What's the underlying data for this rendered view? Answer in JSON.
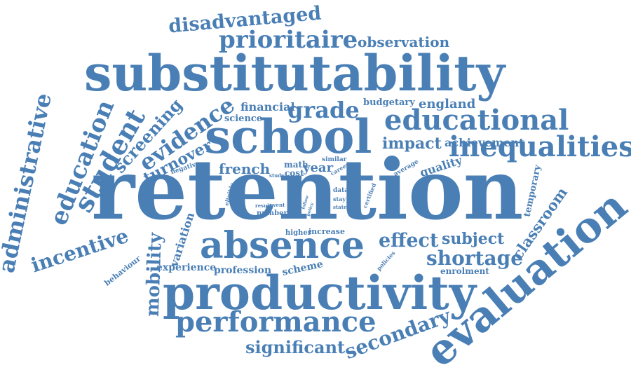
{
  "word_cloud": {
    "color": "#4a7fb5",
    "words": [
      "retention",
      "substitutability",
      "school",
      "productivity",
      "absence",
      "evaluation",
      "educational",
      "inequalities",
      "performance",
      "prioritaire",
      "disadvantaged",
      "student",
      "education",
      "administrative",
      "evidence",
      "grade",
      "incentive",
      "shortage",
      "effect",
      "mobility",
      "secondary",
      "significant",
      "screening",
      "impact",
      "subject",
      "turnover",
      "french",
      "classroom",
      "observation",
      "england",
      "financial",
      "achievement",
      "science",
      "year",
      "quality",
      "experience",
      "variation",
      "profession",
      "temporary",
      "budgetary",
      "scheme",
      "enrolment",
      "behaviour",
      "negative",
      "math",
      "cost",
      "increase",
      "average",
      "eligible",
      "similar",
      "career",
      "number",
      "higher",
      "study",
      "event",
      "data",
      "stay",
      "state",
      "certified",
      "policies",
      "follow",
      "policy",
      "path",
      "result"
    ]
  }
}
